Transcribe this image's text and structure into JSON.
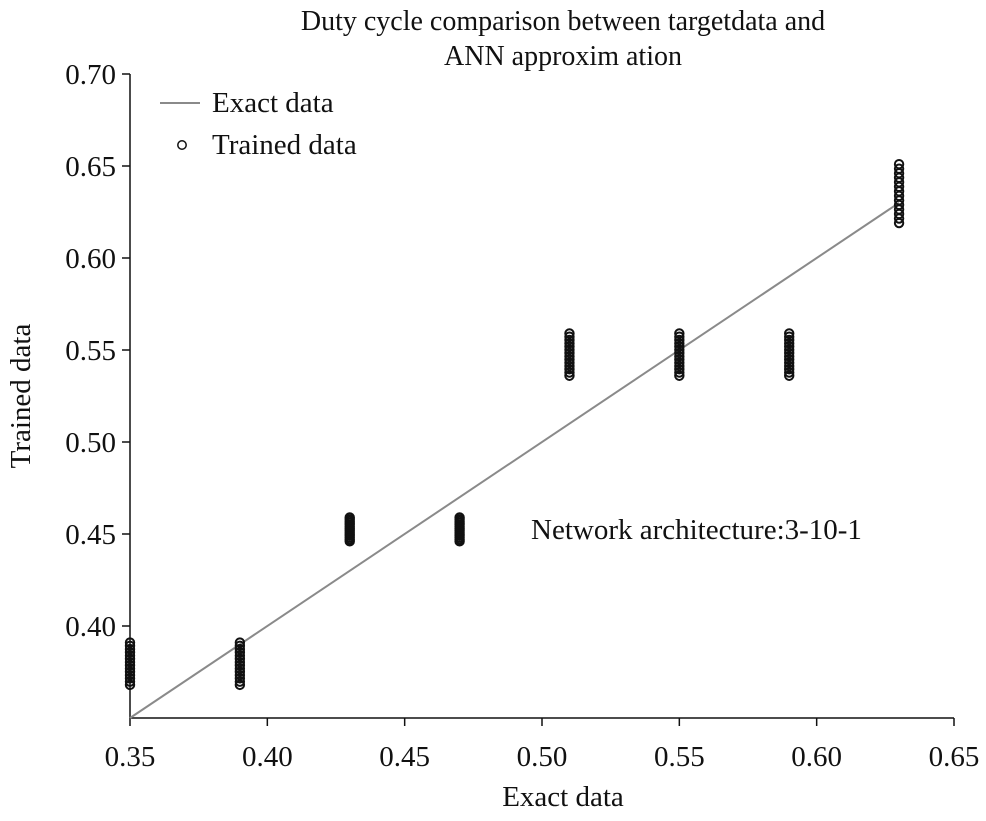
{
  "chart_data": {
    "type": "scatter",
    "title": [
      "Duty cycle comparison between targetdata and",
      "ANN approxim ation"
    ],
    "xlabel": "Exact data",
    "ylabel": "Trained data",
    "xlim": [
      0.35,
      0.65
    ],
    "ylim": [
      0.35,
      0.7
    ],
    "x_ticks": [
      "0.35",
      "0.40",
      "0.45",
      "0.50",
      "0.55",
      "0.60",
      "0.65"
    ],
    "y_ticks": [
      "0.40",
      "0.45",
      "0.50",
      "0.55",
      "0.60",
      "0.65",
      "0.70"
    ],
    "grid": false,
    "legend_position": "top-left",
    "annotation": "Network architecture:3-10-1",
    "line_series": {
      "name": "Exact data",
      "color": "#8a8a8a",
      "points": [
        [
          0.35,
          0.35
        ],
        [
          0.63,
          0.63
        ]
      ]
    },
    "scatter_series": {
      "name": "Trained data",
      "color": "#111111",
      "marker": "open-circle",
      "clusters": [
        {
          "x": 0.35,
          "y_min": 0.368,
          "y_max": 0.391
        },
        {
          "x": 0.39,
          "y_min": 0.368,
          "y_max": 0.391
        },
        {
          "x": 0.43,
          "y_min": 0.446,
          "y_max": 0.459
        },
        {
          "x": 0.47,
          "y_min": 0.446,
          "y_max": 0.459
        },
        {
          "x": 0.51,
          "y_min": 0.536,
          "y_max": 0.559
        },
        {
          "x": 0.55,
          "y_min": 0.536,
          "y_max": 0.559
        },
        {
          "x": 0.59,
          "y_min": 0.536,
          "y_max": 0.559
        },
        {
          "x": 0.63,
          "y_min": 0.619,
          "y_max": 0.651
        }
      ]
    }
  }
}
